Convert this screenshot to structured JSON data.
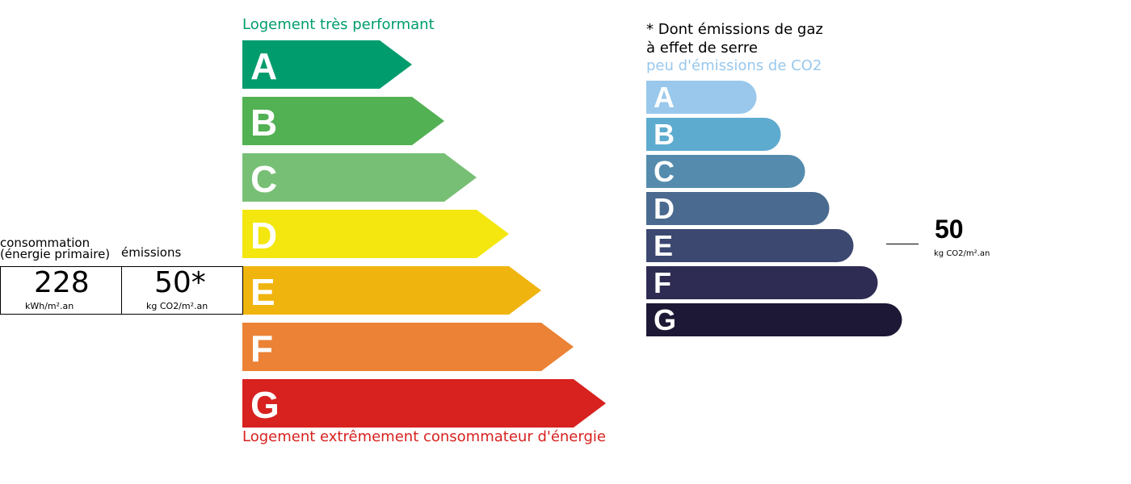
{
  "energy": {
    "top_label": "Logement très performant",
    "bottom_label": "Logement extrêmement consommateur d'énergie",
    "top_color": "#009c6d",
    "bottom_color": "#d7221f",
    "classes": [
      {
        "letter": "A",
        "color": "#009c6d"
      },
      {
        "letter": "B",
        "color": "#52b153"
      },
      {
        "letter": "C",
        "color": "#78bf76"
      },
      {
        "letter": "D",
        "color": "#f3e70f"
      },
      {
        "letter": "E",
        "color": "#f0b40f"
      },
      {
        "letter": "F",
        "color": "#eb8235"
      },
      {
        "letter": "G",
        "color": "#d7221f"
      }
    ],
    "current_class": "E"
  },
  "summary": {
    "consumption_label_1": "consommation",
    "consumption_label_2": "(énergie primaire)",
    "emissions_label": "émissions",
    "consumption_value": "228",
    "consumption_unit": "kWh/m².an",
    "emissions_value": "50*",
    "emissions_unit": "kg CO2/m².an"
  },
  "ghg": {
    "note_line_1": "* Dont émissions de gaz",
    "note_line_2": "à effet de serre",
    "top_label": "peu d'émissions de CO2",
    "top_color": "#99c8ec",
    "classes": [
      {
        "letter": "A",
        "color": "#99c8ec"
      },
      {
        "letter": "B",
        "color": "#5eabd0"
      },
      {
        "letter": "C",
        "color": "#558cad"
      },
      {
        "letter": "D",
        "color": "#4a6a8f"
      },
      {
        "letter": "E",
        "color": "#3c4870"
      },
      {
        "letter": "F",
        "color": "#2e2c52"
      },
      {
        "letter": "G",
        "color": "#1d1835"
      }
    ],
    "current_class": "E",
    "value": "50",
    "unit": "kg CO2/m².an"
  }
}
